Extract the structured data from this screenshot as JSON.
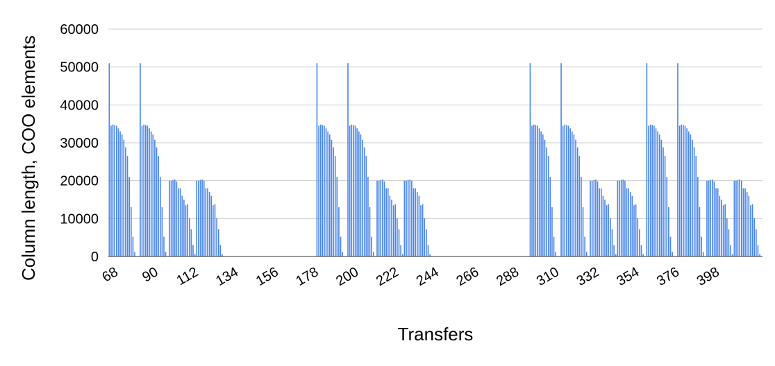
{
  "chart_data": {
    "type": "bar",
    "title": "",
    "xlabel": "Transfers",
    "ylabel": "Column length, COO elements",
    "ylim": [
      0,
      60000
    ],
    "yticks": [
      0,
      10000,
      20000,
      30000,
      40000,
      50000,
      60000
    ],
    "xticks": [
      "68",
      "90",
      "112",
      "134",
      "156",
      "178",
      "200",
      "222",
      "244",
      "266",
      "288",
      "310",
      "332",
      "354",
      "376",
      "398"
    ],
    "x_start": 68,
    "x_end": 417,
    "grid": true,
    "legend": "none",
    "bar_color": "#4a86e8",
    "series": [
      {
        "values": [
          51000,
          34500,
          34800,
          34700,
          34500,
          33800,
          33000,
          32200,
          30800,
          28800,
          26500,
          21000,
          13000,
          5200,
          1200,
          0,
          0,
          51000,
          34500,
          34800,
          34700,
          34500,
          33800,
          33000,
          32200,
          30800,
          28800,
          26500,
          21000,
          13000,
          5200,
          1200,
          0,
          20000,
          20000,
          20200,
          20300,
          19800,
          18000,
          18000,
          16000,
          15000,
          13500,
          13800,
          10100,
          7200,
          3000,
          600,
          20000,
          20000,
          20200,
          20300,
          20000,
          18000,
          18000,
          17000,
          16000,
          13500,
          13800,
          10100,
          7200,
          3000,
          600,
          0,
          0,
          0,
          0,
          0,
          0,
          0,
          0,
          0,
          0,
          0,
          0,
          0,
          0,
          0,
          0,
          0,
          0,
          0,
          0,
          0,
          0,
          0,
          0,
          0,
          0,
          0,
          0,
          0,
          0,
          0,
          0,
          0,
          0,
          0,
          0,
          0,
          0,
          0,
          0,
          0,
          0,
          0,
          0,
          0,
          0,
          0,
          0,
          0,
          0,
          0,
          51000,
          34500,
          34800,
          34700,
          34500,
          33800,
          33000,
          32200,
          30800,
          28800,
          26500,
          21000,
          13000,
          5200,
          1200,
          0,
          0,
          51000,
          34500,
          34800,
          34700,
          34500,
          33800,
          33000,
          32200,
          30800,
          28800,
          26500,
          21000,
          13000,
          5200,
          1200,
          0,
          20000,
          20000,
          20200,
          20300,
          19800,
          18000,
          18000,
          16000,
          15000,
          13500,
          13800,
          10100,
          7200,
          3000,
          600,
          20000,
          20000,
          20200,
          20300,
          20000,
          18000,
          18000,
          17000,
          16000,
          13500,
          13800,
          10100,
          7200,
          3000,
          600,
          0,
          0,
          0,
          0,
          0,
          0,
          0,
          0,
          0,
          0,
          0,
          0,
          0,
          0,
          0,
          0,
          0,
          0,
          0,
          0,
          0,
          0,
          0,
          0,
          0,
          0,
          0,
          0,
          0,
          0,
          0,
          0,
          0,
          0,
          0,
          0,
          0,
          0,
          0,
          0,
          0,
          0,
          0,
          0,
          0,
          0,
          0,
          0,
          0,
          0,
          0,
          0,
          0,
          0,
          51000,
          34500,
          34800,
          34700,
          34500,
          33800,
          33000,
          32200,
          30800,
          28800,
          26500,
          21000,
          13000,
          5200,
          1200,
          0,
          0,
          51000,
          34500,
          34800,
          34700,
          34500,
          33800,
          33000,
          32200,
          30800,
          28800,
          26500,
          21000,
          13000,
          5200,
          1200,
          0,
          20000,
          20000,
          20200,
          20300,
          19800,
          18000,
          18000,
          16000,
          15000,
          13500,
          13800,
          10100,
          7200,
          3000,
          600,
          20000,
          20000,
          20200,
          20300,
          20000,
          18000,
          18000,
          17000,
          16000,
          13500,
          13800,
          10100,
          7200,
          3000,
          600,
          0,
          51000,
          34500,
          34800,
          34700,
          34500,
          33800,
          33000,
          32200,
          30800,
          28800,
          26500,
          21000,
          13000,
          5200,
          1200,
          0,
          0,
          51000,
          34500,
          34800,
          34700,
          34500,
          33800,
          33000,
          32200,
          30800,
          28800,
          26500,
          21000,
          13000,
          5200,
          1200,
          0,
          20000,
          20000,
          20200,
          20300,
          19800,
          18000,
          18000,
          16000,
          15000,
          13500,
          13800,
          10100,
          7200,
          3000,
          600,
          20000,
          20000,
          20200,
          20300,
          20000,
          18000,
          18000,
          17000,
          16000,
          13500,
          13800,
          10100,
          7200,
          3000,
          600,
          0
        ]
      }
    ]
  }
}
